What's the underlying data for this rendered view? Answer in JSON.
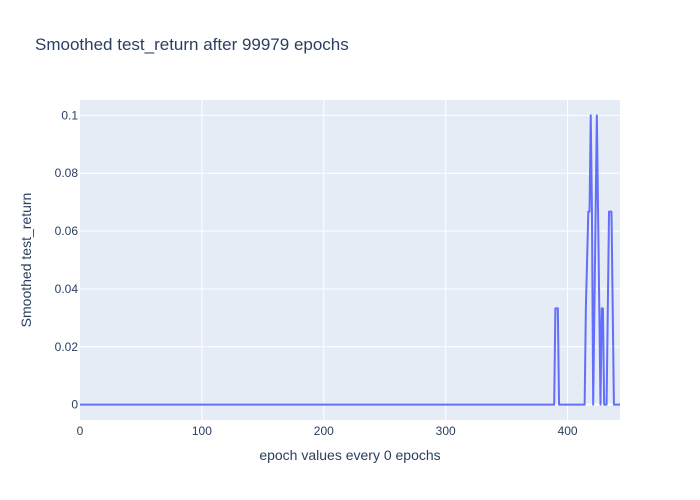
{
  "chart_data": {
    "type": "line",
    "title": "Smoothed test_return after 99979 epochs",
    "xlabel": "epoch values every 0 epochs",
    "ylabel": "Smoothed test_return",
    "xlim": [
      0,
      443
    ],
    "ylim": [
      -0.0053,
      0.1053
    ],
    "grid": true,
    "line_color": "#636efa",
    "plot_bg": "#e5ecf6",
    "grid_color": "#ffffff",
    "x_ticks": [
      {
        "value": 0,
        "label": "0"
      },
      {
        "value": 100,
        "label": "100"
      },
      {
        "value": 200,
        "label": "200"
      },
      {
        "value": 300,
        "label": "300"
      },
      {
        "value": 400,
        "label": "400"
      }
    ],
    "y_ticks": [
      {
        "value": 0,
        "label": "0"
      },
      {
        "value": 0.02,
        "label": "0.02"
      },
      {
        "value": 0.04,
        "label": "0.04"
      },
      {
        "value": 0.06,
        "label": "0.06"
      },
      {
        "value": 0.08,
        "label": "0.08"
      },
      {
        "value": 0.1,
        "label": "0.1"
      }
    ],
    "series": [
      {
        "x": [
          0,
          389,
          390,
          392,
          393,
          414,
          415,
          417,
          418,
          419,
          420,
          421,
          422,
          423,
          424,
          425,
          426,
          427,
          428,
          429,
          430,
          431,
          432,
          433,
          434,
          435,
          436,
          437,
          438,
          439,
          440,
          443
        ],
        "y": [
          0,
          0,
          0.0333,
          0.0333,
          0,
          0,
          0.0333,
          0.0667,
          0.0667,
          0.1,
          0.0667,
          0,
          0.0333,
          0.0667,
          0.1,
          0.0667,
          0.0333,
          0,
          0.0333,
          0.0333,
          0,
          0,
          0,
          0.0333,
          0.0667,
          0.0667,
          0.0667,
          0.0333,
          0,
          0,
          0,
          0
        ]
      }
    ]
  }
}
